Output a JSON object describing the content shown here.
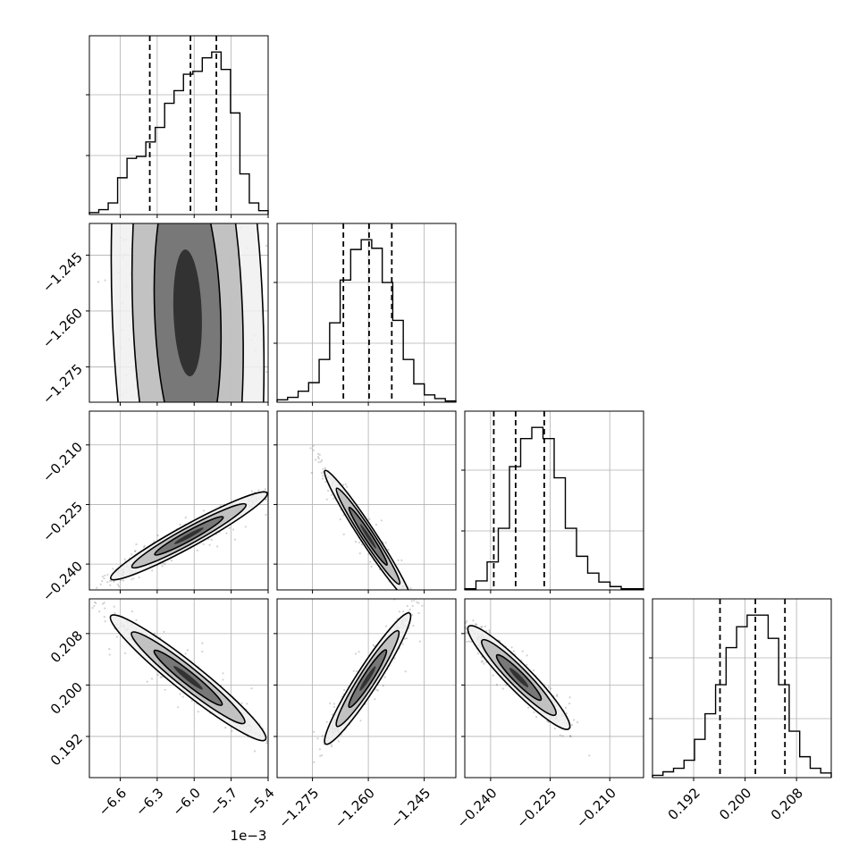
{
  "chart_data": {
    "type": "corner",
    "grid": true,
    "parameters": [
      {
        "range": [
          -6.85,
          -5.4
        ],
        "ticks": [
          -6.6,
          -6.3,
          -6.0,
          -5.7,
          -5.4
        ],
        "tick_labels": [
          "−6.6",
          "−6.3",
          "−6.0",
          "−5.7",
          "−5.4"
        ],
        "offset_text": "1e−3",
        "quantiles": [
          -6.36,
          -6.03,
          -5.82
        ],
        "hist": [
          2,
          5,
          12,
          38,
          58,
          60,
          75,
          90,
          115,
          128,
          145,
          148,
          162,
          168,
          150,
          105,
          42,
          12,
          4
        ]
      },
      {
        "range": [
          -1.2845,
          -1.2365
        ],
        "ticks": [
          -1.275,
          -1.26,
          -1.245
        ],
        "tick_labels": [
          "−1.275",
          "−1.260",
          "−1.245"
        ],
        "quantiles": [
          -1.2667,
          -1.2598,
          -1.2537
        ],
        "hist": [
          2,
          4,
          9,
          16,
          35,
          65,
          100,
          125,
          133,
          126,
          98,
          67,
          35,
          15,
          6,
          3,
          1
        ]
      },
      {
        "range": [
          -0.2465,
          -0.2015
        ],
        "ticks": [
          -0.24,
          -0.225,
          -0.21
        ],
        "tick_labels": [
          "−0.240",
          "−0.225",
          "−0.210"
        ],
        "quantiles": [
          -0.2392,
          -0.2337,
          -0.2265
        ],
        "hist": [
          1,
          8,
          25,
          55,
          110,
          135,
          145,
          135,
          100,
          55,
          30,
          15,
          7,
          3,
          1,
          1
        ]
      },
      {
        "range": [
          0.1856,
          0.2134
        ],
        "ticks": [
          0.192,
          0.2,
          0.208
        ],
        "tick_labels": [
          "0.192",
          "0.200",
          "0.208"
        ],
        "quantiles": [
          0.1961,
          0.2016,
          0.2062
        ],
        "hist": [
          2,
          5,
          8,
          15,
          33,
          55,
          80,
          112,
          130,
          140,
          140,
          120,
          80,
          40,
          18,
          8,
          4
        ]
      }
    ],
    "pairs": [
      {
        "row": 1,
        "col": 0,
        "mean": [
          -6.05,
          -1.26
        ],
        "slope": -0.0215,
        "w": 0.0375,
        "sdx": 0.26
      },
      {
        "row": 2,
        "col": 0,
        "mean": [
          -6.05,
          -0.233
        ],
        "slope": 0.017,
        "w": 0.0012,
        "sdx": 0.26
      },
      {
        "row": 2,
        "col": 1,
        "mean": [
          -1.26,
          -0.233
        ],
        "slope": -1.4,
        "w": 0.0013,
        "sdx": 0.0048
      },
      {
        "row": 3,
        "col": 0,
        "mean": [
          -6.05,
          0.2012
        ],
        "slope": -0.015,
        "w": 0.001,
        "sdx": 0.26
      },
      {
        "row": 3,
        "col": 1,
        "mean": [
          -1.26,
          0.2012
        ],
        "slope": 0.85,
        "w": 0.0012,
        "sdx": 0.0048
      },
      {
        "row": 3,
        "col": 2,
        "mean": [
          -0.233,
          0.2012
        ],
        "slope": -0.6,
        "w": 0.0011,
        "sdx": 0.0052
      }
    ]
  }
}
